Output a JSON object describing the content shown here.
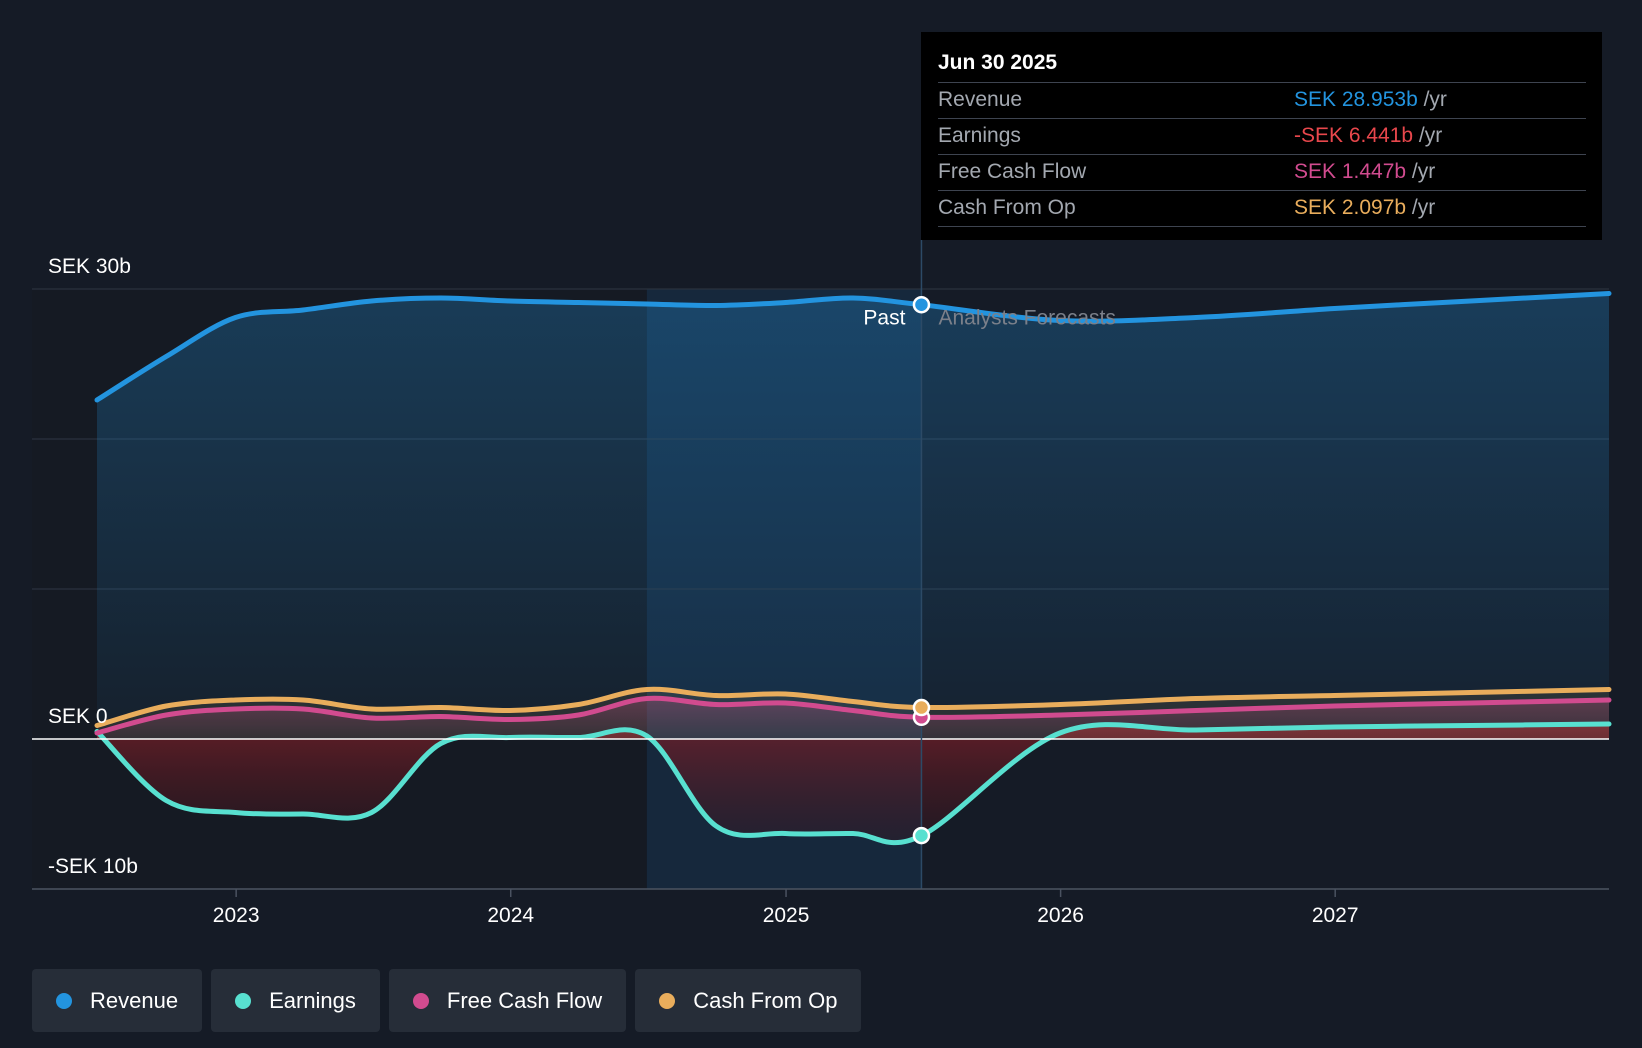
{
  "chart_data": {
    "type": "area",
    "x_ticks": [
      "2023",
      "2024",
      "2025",
      "2026",
      "2027"
    ],
    "y_ticks": [
      {
        "value": 30,
        "label": "SEK 30b"
      },
      {
        "value": 0,
        "label": "SEK 0"
      },
      {
        "value": -10,
        "label": "-SEK 10b"
      }
    ],
    "ylim": [
      -10,
      30
    ],
    "xlim": [
      "2022-06-30",
      "2027-12-31"
    ],
    "past_label": "Past",
    "forecast_label": "Analysts Forecasts",
    "past_end": "2025-06-30",
    "highlight_start": "2024-06-30",
    "series": [
      {
        "name": "Revenue",
        "color": "#2394df",
        "points": [
          [
            "2022-06-30",
            22.6
          ],
          [
            "2022-09-30",
            25.5
          ],
          [
            "2022-12-31",
            28.1
          ],
          [
            "2023-03-31",
            28.6
          ],
          [
            "2023-06-30",
            29.2
          ],
          [
            "2023-09-30",
            29.4
          ],
          [
            "2023-12-31",
            29.2
          ],
          [
            "2024-03-31",
            29.1
          ],
          [
            "2024-06-30",
            29.0
          ],
          [
            "2024-09-30",
            28.9
          ],
          [
            "2024-12-31",
            29.1
          ],
          [
            "2025-03-31",
            29.4
          ],
          [
            "2025-06-30",
            28.953
          ],
          [
            "2025-12-31",
            27.9
          ],
          [
            "2026-06-30",
            28.1
          ],
          [
            "2026-12-31",
            28.7
          ],
          [
            "2027-06-30",
            29.2
          ],
          [
            "2027-12-31",
            29.7
          ]
        ]
      },
      {
        "name": "Earnings",
        "color": "#58e0d0",
        "points": [
          [
            "2022-06-30",
            0.5
          ],
          [
            "2022-09-30",
            -4.1
          ],
          [
            "2022-12-31",
            -4.9
          ],
          [
            "2023-03-31",
            -5.0
          ],
          [
            "2023-06-30",
            -4.9
          ],
          [
            "2023-09-30",
            -0.3
          ],
          [
            "2023-12-31",
            0.1
          ],
          [
            "2024-03-31",
            0.1
          ],
          [
            "2024-06-30",
            0.2
          ],
          [
            "2024-09-30",
            -5.8
          ],
          [
            "2024-12-31",
            -6.3
          ],
          [
            "2025-03-31",
            -6.3
          ],
          [
            "2025-06-30",
            -6.441
          ],
          [
            "2025-12-31",
            0.4
          ],
          [
            "2026-06-30",
            0.6
          ],
          [
            "2026-12-31",
            0.8
          ],
          [
            "2027-06-30",
            0.9
          ],
          [
            "2027-12-31",
            1.0
          ]
        ]
      },
      {
        "name": "Free Cash Flow",
        "color": "#d14b8f",
        "points": [
          [
            "2022-06-30",
            0.4
          ],
          [
            "2022-09-30",
            1.6
          ],
          [
            "2022-12-31",
            2.0
          ],
          [
            "2023-03-31",
            2.0
          ],
          [
            "2023-06-30",
            1.4
          ],
          [
            "2023-09-30",
            1.5
          ],
          [
            "2023-12-31",
            1.3
          ],
          [
            "2024-03-31",
            1.6
          ],
          [
            "2024-06-30",
            2.7
          ],
          [
            "2024-09-30",
            2.3
          ],
          [
            "2024-12-31",
            2.4
          ],
          [
            "2025-03-31",
            1.9
          ],
          [
            "2025-06-30",
            1.447
          ],
          [
            "2025-12-31",
            1.6
          ],
          [
            "2026-06-30",
            1.9
          ],
          [
            "2026-12-31",
            2.2
          ],
          [
            "2027-06-30",
            2.4
          ],
          [
            "2027-12-31",
            2.6
          ]
        ]
      },
      {
        "name": "Cash From Op",
        "color": "#e9ad5c",
        "points": [
          [
            "2022-06-30",
            0.9
          ],
          [
            "2022-09-30",
            2.2
          ],
          [
            "2022-12-31",
            2.6
          ],
          [
            "2023-03-31",
            2.6
          ],
          [
            "2023-06-30",
            2.0
          ],
          [
            "2023-09-30",
            2.1
          ],
          [
            "2023-12-31",
            1.9
          ],
          [
            "2024-03-31",
            2.3
          ],
          [
            "2024-06-30",
            3.3
          ],
          [
            "2024-09-30",
            2.9
          ],
          [
            "2024-12-31",
            3.0
          ],
          [
            "2025-03-31",
            2.5
          ],
          [
            "2025-06-30",
            2.097
          ],
          [
            "2025-12-31",
            2.3
          ],
          [
            "2026-06-30",
            2.7
          ],
          [
            "2026-12-31",
            2.9
          ],
          [
            "2027-06-30",
            3.1
          ],
          [
            "2027-12-31",
            3.3
          ]
        ]
      }
    ]
  },
  "tooltip": {
    "date": "Jun 30 2025",
    "rows": [
      {
        "label": "Revenue",
        "value": "SEK 28.953b",
        "unit": " /yr",
        "color": "#2394df"
      },
      {
        "label": "Earnings",
        "value": "-SEK 6.441b",
        "unit": " /yr",
        "color": "#e8474c"
      },
      {
        "label": "Free Cash Flow",
        "value": "SEK 1.447b",
        "unit": " /yr",
        "color": "#d14b8f"
      },
      {
        "label": "Cash From Op",
        "value": "SEK 2.097b",
        "unit": " /yr",
        "color": "#e9ad5c"
      }
    ]
  },
  "legend": [
    {
      "label": "Revenue",
      "color": "#2394df"
    },
    {
      "label": "Earnings",
      "color": "#58e0d0"
    },
    {
      "label": "Free Cash Flow",
      "color": "#d14b8f"
    },
    {
      "label": "Cash From Op",
      "color": "#e9ad5c"
    }
  ]
}
